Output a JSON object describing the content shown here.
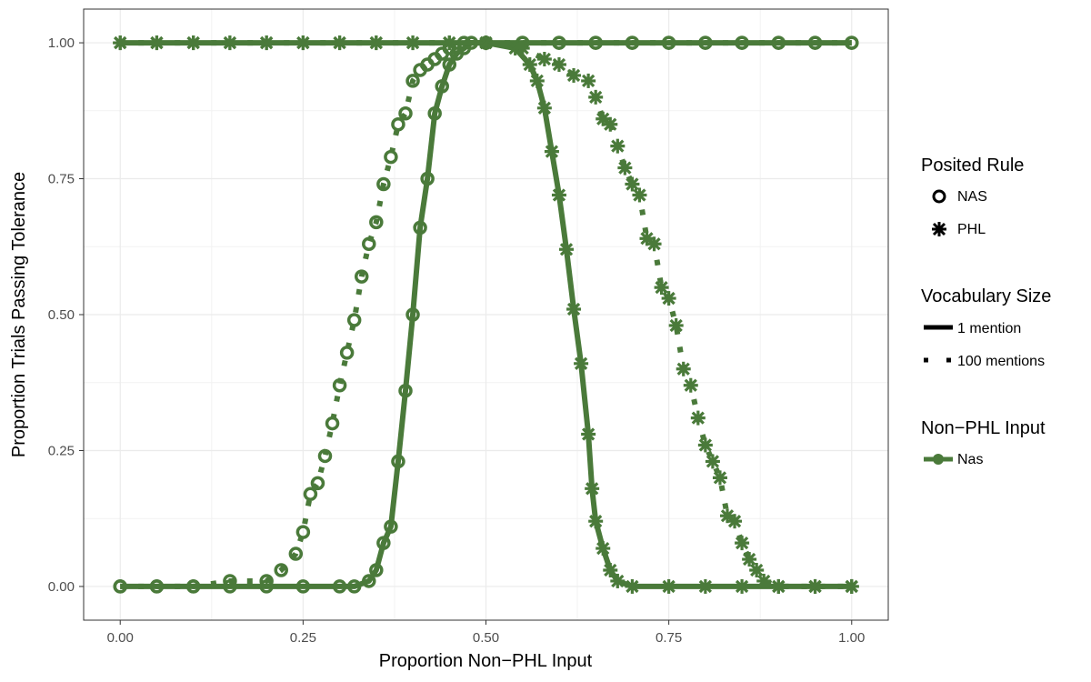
{
  "chart_data": {
    "type": "line",
    "xlabel": "Proportion Non−PHL Input",
    "ylabel": "Proportion Trials Passing Tolerance",
    "xlim": [
      -0.05,
      1.05
    ],
    "ylim": [
      -0.062,
      1.062
    ],
    "x_ticks": [
      0.0,
      0.25,
      0.5,
      0.75,
      1.0
    ],
    "x_tick_labels": [
      "0.00",
      "0.25",
      "0.50",
      "0.75",
      "1.00"
    ],
    "y_ticks": [
      0.0,
      0.25,
      0.5,
      0.75,
      1.0
    ],
    "y_tick_labels": [
      "0.00",
      "0.25",
      "0.50",
      "0.75",
      "1.00"
    ],
    "grid": true,
    "legend_placement": "right",
    "color": "#4a7a3a",
    "legends": [
      {
        "title": "Posited Rule",
        "items": [
          {
            "label": "NAS",
            "shape": "open-circle"
          },
          {
            "label": "PHL",
            "shape": "asterisk"
          }
        ]
      },
      {
        "title": "Vocabulary Size",
        "items": [
          {
            "label": "1 mention",
            "linetype": "solid"
          },
          {
            "label": "100 mentions",
            "linetype": "dotted"
          }
        ]
      },
      {
        "title": "Non−PHL Input",
        "items": [
          {
            "label": "Nas",
            "shape": "filled-circle-line"
          }
        ]
      }
    ],
    "series": [
      {
        "rule": "NAS",
        "vocab": "1 mention",
        "marker": "open-circle",
        "line": "solid",
        "x": [
          0.0,
          0.05,
          0.1,
          0.15,
          0.2,
          0.25,
          0.3,
          0.32,
          0.34,
          0.35,
          0.36,
          0.37,
          0.38,
          0.39,
          0.4,
          0.41,
          0.42,
          0.43,
          0.44,
          0.45,
          0.46,
          0.47,
          0.48,
          0.5,
          0.55,
          0.6,
          0.65,
          0.7,
          0.75,
          0.8,
          0.85,
          0.9,
          0.95,
          1.0
        ],
        "y": [
          0.0,
          0.0,
          0.0,
          0.0,
          0.0,
          0.0,
          0.0,
          0.0,
          0.01,
          0.03,
          0.08,
          0.11,
          0.23,
          0.36,
          0.5,
          0.66,
          0.75,
          0.87,
          0.92,
          0.96,
          0.98,
          0.99,
          1.0,
          1.0,
          1.0,
          1.0,
          1.0,
          1.0,
          1.0,
          1.0,
          1.0,
          1.0,
          1.0,
          1.0
        ]
      },
      {
        "rule": "NAS",
        "vocab": "100 mentions",
        "marker": "open-circle",
        "line": "dotted",
        "x": [
          0.0,
          0.05,
          0.1,
          0.15,
          0.2,
          0.22,
          0.24,
          0.25,
          0.26,
          0.27,
          0.28,
          0.29,
          0.3,
          0.31,
          0.32,
          0.33,
          0.34,
          0.35,
          0.36,
          0.37,
          0.38,
          0.39,
          0.4,
          0.41,
          0.42,
          0.43,
          0.44,
          0.45,
          0.47,
          0.5,
          0.55,
          0.6,
          0.65,
          0.7,
          0.75,
          0.8,
          0.85,
          0.9,
          0.95,
          1.0
        ],
        "y": [
          0.0,
          0.0,
          0.0,
          0.01,
          0.01,
          0.03,
          0.06,
          0.1,
          0.17,
          0.19,
          0.24,
          0.3,
          0.37,
          0.43,
          0.49,
          0.57,
          0.63,
          0.67,
          0.74,
          0.79,
          0.85,
          0.87,
          0.93,
          0.95,
          0.96,
          0.97,
          0.98,
          0.99,
          1.0,
          1.0,
          1.0,
          1.0,
          1.0,
          1.0,
          1.0,
          1.0,
          1.0,
          1.0,
          1.0,
          1.0
        ]
      },
      {
        "rule": "PHL",
        "vocab": "1 mention",
        "marker": "asterisk",
        "line": "solid",
        "x": [
          0.0,
          0.05,
          0.1,
          0.15,
          0.2,
          0.25,
          0.3,
          0.35,
          0.4,
          0.45,
          0.5,
          0.54,
          0.56,
          0.57,
          0.58,
          0.59,
          0.6,
          0.61,
          0.62,
          0.63,
          0.64,
          0.645,
          0.65,
          0.66,
          0.67,
          0.68,
          0.7,
          0.75,
          0.8,
          0.85,
          0.9,
          0.95,
          1.0
        ],
        "y": [
          1.0,
          1.0,
          1.0,
          1.0,
          1.0,
          1.0,
          1.0,
          1.0,
          1.0,
          1.0,
          1.0,
          0.99,
          0.96,
          0.93,
          0.88,
          0.8,
          0.72,
          0.62,
          0.51,
          0.41,
          0.28,
          0.18,
          0.12,
          0.07,
          0.03,
          0.01,
          0.0,
          0.0,
          0.0,
          0.0,
          0.0,
          0.0,
          0.0
        ]
      },
      {
        "rule": "PHL",
        "vocab": "100 mentions",
        "marker": "asterisk",
        "line": "dotted",
        "x": [
          0.0,
          0.05,
          0.1,
          0.15,
          0.2,
          0.25,
          0.3,
          0.35,
          0.4,
          0.45,
          0.5,
          0.55,
          0.58,
          0.6,
          0.62,
          0.64,
          0.65,
          0.66,
          0.67,
          0.68,
          0.69,
          0.7,
          0.71,
          0.72,
          0.73,
          0.74,
          0.75,
          0.76,
          0.77,
          0.78,
          0.79,
          0.8,
          0.81,
          0.82,
          0.83,
          0.84,
          0.85,
          0.86,
          0.87,
          0.88,
          0.9,
          0.95,
          1.0
        ],
        "y": [
          1.0,
          1.0,
          1.0,
          1.0,
          1.0,
          1.0,
          1.0,
          1.0,
          1.0,
          1.0,
          1.0,
          0.99,
          0.97,
          0.96,
          0.94,
          0.93,
          0.9,
          0.86,
          0.85,
          0.81,
          0.77,
          0.74,
          0.72,
          0.64,
          0.63,
          0.55,
          0.53,
          0.48,
          0.4,
          0.37,
          0.31,
          0.26,
          0.23,
          0.2,
          0.13,
          0.12,
          0.08,
          0.05,
          0.03,
          0.01,
          0.0,
          0.0,
          0.0
        ]
      }
    ]
  }
}
